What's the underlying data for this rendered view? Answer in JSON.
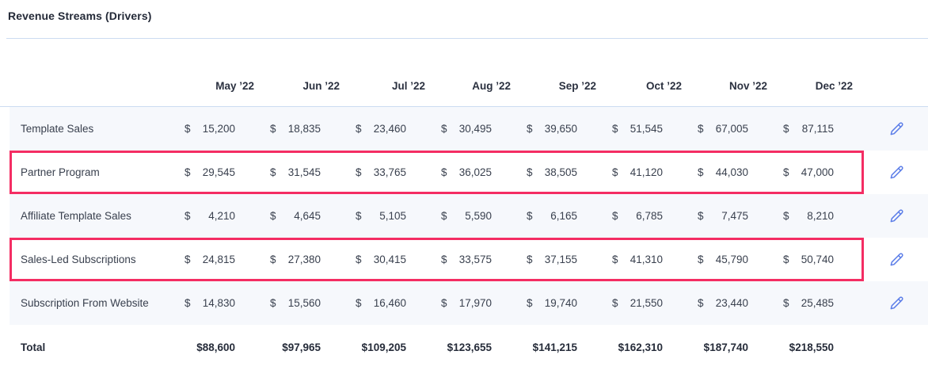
{
  "title": "Revenue Streams (Drivers)",
  "currency_symbol": "$",
  "table": {
    "columns": [
      "May ’22",
      "Jun ’22",
      "Jul ’22",
      "Aug ’22",
      "Sep ’22",
      "Oct ’22",
      "Nov ’22",
      "Dec ’22"
    ],
    "rows": [
      {
        "label": "Template Sales",
        "highlighted": false,
        "values": [
          "15,200",
          "18,835",
          "23,460",
          "30,495",
          "39,650",
          "51,545",
          "67,005",
          "87,115"
        ]
      },
      {
        "label": "Partner Program",
        "highlighted": true,
        "values": [
          "29,545",
          "31,545",
          "33,765",
          "36,025",
          "38,505",
          "41,120",
          "44,030",
          "47,000"
        ]
      },
      {
        "label": "Affiliate Template Sales",
        "highlighted": false,
        "values": [
          "4,210",
          "4,645",
          "5,105",
          "5,590",
          "6,165",
          "6,785",
          "7,475",
          "8,210"
        ]
      },
      {
        "label": "Sales-Led Subscriptions",
        "highlighted": true,
        "values": [
          "24,815",
          "27,380",
          "30,415",
          "33,575",
          "37,155",
          "41,310",
          "45,790",
          "50,740"
        ]
      },
      {
        "label": "Subscription From Website",
        "highlighted": false,
        "values": [
          "14,830",
          "15,560",
          "16,460",
          "17,970",
          "19,740",
          "21,550",
          "23,440",
          "25,485"
        ]
      }
    ],
    "total_row": {
      "label": "Total",
      "values": [
        "88,600",
        "97,965",
        "109,205",
        "123,655",
        "141,215",
        "162,310",
        "187,740",
        "218,550"
      ]
    }
  },
  "icons": {
    "row_action": "pencil-icon"
  },
  "colors": {
    "highlight_border": "#F42D63",
    "edit_icon_blue": "#5B7DE8",
    "row_stripe": "#F6F8FC",
    "divider_blue": "#CCDCF1",
    "text_dark": "#2B3140"
  }
}
